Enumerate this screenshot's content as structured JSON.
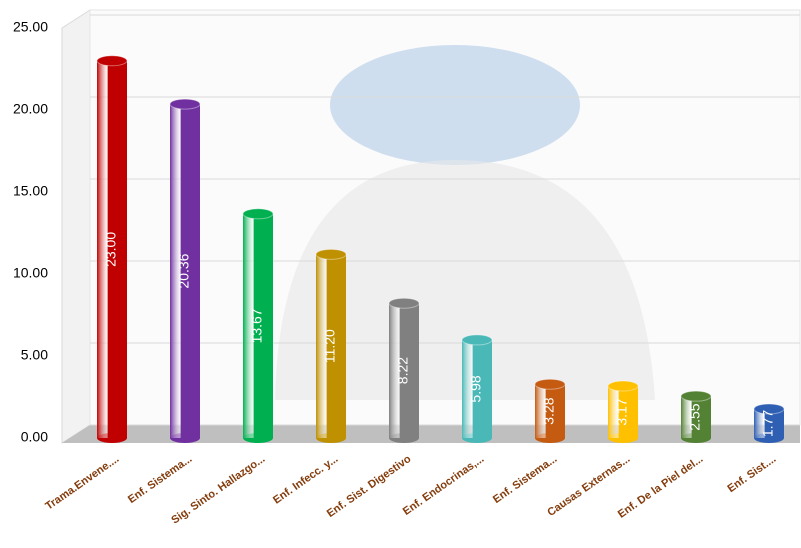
{
  "chart_data": {
    "type": "bar",
    "categories": [
      "Trama.Envene....",
      "Enf. Sistema...",
      "Sig. Sinto. Hallazgo...",
      "Enf. Infecc. y...",
      "Enf. Sist. Digestivo",
      "Enf. Endocrinas,...",
      "Enf. Sistema...",
      "Causas Externas...",
      "Enf. De la Piel del...",
      "Enf. Sist...."
    ],
    "values": [
      23.0,
      20.36,
      13.67,
      11.2,
      8.22,
      5.98,
      3.28,
      3.17,
      2.55,
      1.77
    ],
    "value_labels": [
      "23.00",
      "20.36",
      "13.67",
      "11.20",
      "8.22",
      "5.98",
      "3.28",
      "3.17",
      "2.55",
      "1.77"
    ],
    "colors": [
      "#c00000",
      "#7030a0",
      "#00b050",
      "#bf9000",
      "#808080",
      "#4bb8b8",
      "#c55a11",
      "#ffc000",
      "#548235",
      "#2f5fb3"
    ],
    "ylim": [
      0,
      25
    ],
    "yticks": [
      {
        "value": 0,
        "label": "0.00"
      },
      {
        "value": 5,
        "label": "5.00"
      },
      {
        "value": 10,
        "label": "10.00"
      },
      {
        "value": 15,
        "label": "15.00"
      },
      {
        "value": 20,
        "label": "20.00"
      },
      {
        "value": 25,
        "label": "25.00"
      }
    ],
    "grid": true
  }
}
